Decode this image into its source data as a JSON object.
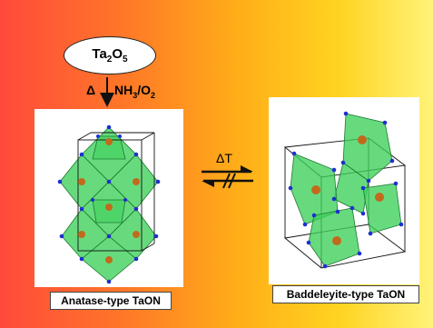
{
  "precursor": {
    "main": "Ta",
    "sub1": "2",
    "mid": "O",
    "sub2": "5"
  },
  "synthesis": {
    "heat_symbol": "Δ",
    "gas_a": "NH",
    "gas_a_sub": "3",
    "slash": "/",
    "gas_b": "O",
    "gas_b_sub": "2"
  },
  "transition": {
    "label": "ΔT"
  },
  "structures": {
    "left_label": "Anatase-type TaON",
    "right_label": "Baddeleyite-type TaON"
  },
  "colors": {
    "polyhedra": "#3ccf5a",
    "polyhedra_edge": "#1c7a30",
    "metal_atom": "#c26a1c",
    "anion_atom": "#1e2fd0"
  }
}
